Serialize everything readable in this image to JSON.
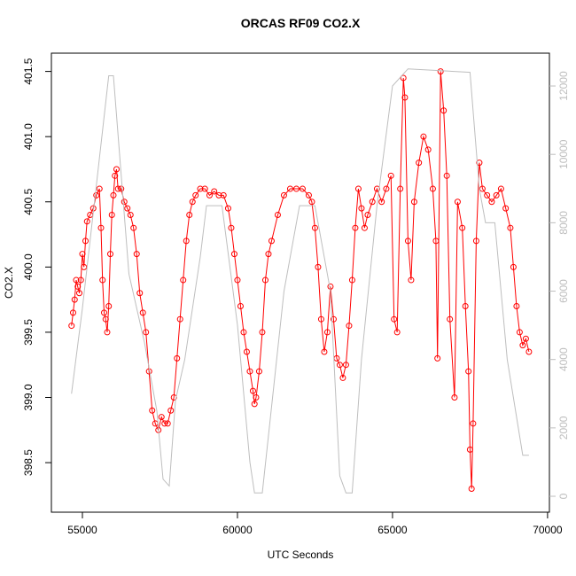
{
  "chart_data": {
    "type": "line",
    "title": "ORCAS RF09 CO2.X",
    "x_label": "UTC Seconds",
    "y_label": "CO2.X",
    "xlim": [
      54000,
      70060
    ],
    "xticks": [
      55000,
      60000,
      65000,
      70000
    ],
    "ylim": [
      398.12,
      401.64
    ],
    "yticks": [
      398.5,
      {
        "value": 399,
        "label": "399.0"
      },
      399.5,
      {
        "value": 400,
        "label": "400.0"
      },
      400.5,
      {
        "value": 401,
        "label": "401.0"
      },
      401.5
    ],
    "y2lim": [
      -466,
      12960
    ],
    "y2ticks": [
      0,
      2000,
      4000,
      6000,
      8000,
      10000,
      12000
    ],
    "series": [
      {
        "color": "#ff0000",
        "markers": true,
        "x": [
          54650,
          54700,
          54750,
          54800,
          54850,
          54900,
          54950,
          55000,
          55050,
          55100,
          55150,
          55250,
          55350,
          55450,
          55550,
          55600,
          55650,
          55700,
          55750,
          55800,
          55850,
          55900,
          55950,
          56000,
          56050,
          56100,
          56150,
          56250,
          56350,
          56450,
          56550,
          56650,
          56750,
          56850,
          56950,
          57050,
          57150,
          57250,
          57350,
          57450,
          57550,
          57650,
          57750,
          57850,
          57950,
          58050,
          58150,
          58250,
          58350,
          58450,
          58550,
          58650,
          58800,
          58950,
          59100,
          59250,
          59400,
          59550,
          59700,
          59800,
          59900,
          60000,
          60100,
          60200,
          60300,
          60400,
          60500,
          60550,
          60600,
          60700,
          60800,
          60900,
          61000,
          61100,
          61300,
          61500,
          61700,
          61900,
          62100,
          62300,
          62400,
          62500,
          62600,
          62700,
          62800,
          62900,
          63000,
          63100,
          63200,
          63300,
          63400,
          63500,
          63600,
          63700,
          63800,
          63900,
          64000,
          64100,
          64200,
          64350,
          64500,
          64650,
          64800,
          64950,
          65050,
          65150,
          65250,
          65350,
          65400,
          65500,
          65600,
          65700,
          65850,
          66000,
          66150,
          66300,
          66400,
          66450,
          66550,
          66650,
          66750,
          66850,
          67000,
          67100,
          67250,
          67350,
          67450,
          67500,
          67550,
          67600,
          67700,
          67800,
          67900,
          68050,
          68200,
          68350,
          68500,
          68650,
          68800,
          68900,
          69000,
          69100,
          69200,
          69300,
          69400
        ],
        "values": [
          399.55,
          399.65,
          399.75,
          399.9,
          399.85,
          399.8,
          399.9,
          400.1,
          400.0,
          400.2,
          400.35,
          400.4,
          400.45,
          400.55,
          400.6,
          400.3,
          399.9,
          399.65,
          399.6,
          399.5,
          399.7,
          400.1,
          400.4,
          400.55,
          400.7,
          400.75,
          400.6,
          400.6,
          400.5,
          400.45,
          400.4,
          400.3,
          400.1,
          399.8,
          399.65,
          399.5,
          399.2,
          398.9,
          398.8,
          398.75,
          398.85,
          398.8,
          398.8,
          398.9,
          399.0,
          399.3,
          399.6,
          399.9,
          400.2,
          400.4,
          400.5,
          400.55,
          400.6,
          400.6,
          400.55,
          400.58,
          400.55,
          400.55,
          400.45,
          400.3,
          400.1,
          399.9,
          399.7,
          399.5,
          399.35,
          399.2,
          399.05,
          398.95,
          399.0,
          399.2,
          399.5,
          399.9,
          400.1,
          400.2,
          400.4,
          400.55,
          400.6,
          400.6,
          400.6,
          400.55,
          400.5,
          400.3,
          400.0,
          399.6,
          399.35,
          399.5,
          399.85,
          399.6,
          399.3,
          399.25,
          399.15,
          399.25,
          399.55,
          399.9,
          400.3,
          400.6,
          400.45,
          400.3,
          400.4,
          400.5,
          400.6,
          400.5,
          400.6,
          400.7,
          399.6,
          399.5,
          400.6,
          401.45,
          401.3,
          400.2,
          399.9,
          400.5,
          400.8,
          401.0,
          400.9,
          400.6,
          400.2,
          399.3,
          401.5,
          401.2,
          400.7,
          399.6,
          399.0,
          400.5,
          400.3,
          399.7,
          399.2,
          398.6,
          398.3,
          398.8,
          400.2,
          400.8,
          400.6,
          400.55,
          400.5,
          400.55,
          400.6,
          400.45,
          400.3,
          400.0,
          399.7,
          399.5,
          399.4,
          399.45,
          399.35
        ]
      },
      {
        "color": "#bebebe",
        "axis": "y2",
        "markers": false,
        "x": [
          54650,
          55000,
          55500,
          55850,
          56000,
          56500,
          57000,
          57400,
          57600,
          57800,
          58000,
          58300,
          58800,
          59000,
          59500,
          60000,
          60400,
          60550,
          60800,
          61500,
          62000,
          62500,
          63000,
          63300,
          63500,
          63700,
          64000,
          64500,
          65000,
          65500,
          67500,
          67800,
          68000,
          68300,
          68700,
          69200,
          69400
        ],
        "values": [
          3000,
          5500,
          9500,
          12300,
          12300,
          6500,
          4500,
          2500,
          500,
          300,
          2800,
          4000,
          7000,
          8500,
          8500,
          5000,
          1000,
          100,
          100,
          6000,
          8500,
          8500,
          6000,
          600,
          100,
          100,
          4000,
          8500,
          12000,
          12500,
          12400,
          9000,
          8000,
          8000,
          4000,
          1200,
          1200
        ]
      }
    ]
  }
}
